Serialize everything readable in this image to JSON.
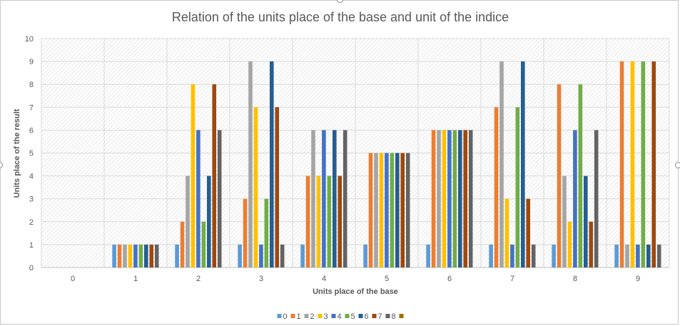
{
  "chart_data": {
    "type": "bar",
    "title": "Relation of the units place of the base and unit of the indice",
    "xlabel": "Units place of the base",
    "ylabel": "Units place of the result",
    "categories": [
      "0",
      "1",
      "2",
      "3",
      "4",
      "5",
      "6",
      "7",
      "8",
      "9"
    ],
    "ylim": [
      0,
      10
    ],
    "yticks": [
      "0",
      "1",
      "2",
      "3",
      "4",
      "5",
      "6",
      "7",
      "8",
      "9",
      "10"
    ],
    "grid": true,
    "legend_position": "bottom",
    "series": [
      {
        "name": "0",
        "color": "#5B9BD5",
        "values": [
          0,
          1,
          1,
          1,
          1,
          1,
          1,
          1,
          1,
          1
        ]
      },
      {
        "name": "1",
        "color": "#ED7D31",
        "values": [
          0,
          1,
          2,
          3,
          4,
          5,
          6,
          7,
          8,
          9
        ]
      },
      {
        "name": "2",
        "color": "#A5A5A5",
        "values": [
          0,
          1,
          4,
          9,
          6,
          5,
          6,
          9,
          4,
          1
        ]
      },
      {
        "name": "3",
        "color": "#FFC000",
        "values": [
          0,
          1,
          8,
          7,
          4,
          5,
          6,
          3,
          2,
          9
        ]
      },
      {
        "name": "4",
        "color": "#4472C4",
        "values": [
          0,
          1,
          6,
          1,
          6,
          5,
          6,
          1,
          6,
          1
        ]
      },
      {
        "name": "5",
        "color": "#70AD47",
        "values": [
          0,
          1,
          2,
          3,
          4,
          5,
          6,
          7,
          8,
          9
        ]
      },
      {
        "name": "6",
        "color": "#255E91",
        "values": [
          0,
          1,
          4,
          9,
          6,
          5,
          6,
          9,
          4,
          1
        ]
      },
      {
        "name": "7",
        "color": "#9E480E",
        "values": [
          0,
          1,
          8,
          7,
          4,
          5,
          6,
          3,
          2,
          9
        ]
      },
      {
        "name": "8",
        "color": "#636363",
        "values": [
          0,
          1,
          6,
          1,
          6,
          5,
          6,
          1,
          6,
          1
        ]
      },
      {
        "name": "",
        "color": "#997300",
        "values": [
          0,
          0,
          0,
          0,
          0,
          0,
          0,
          0,
          0,
          0
        ]
      }
    ]
  }
}
